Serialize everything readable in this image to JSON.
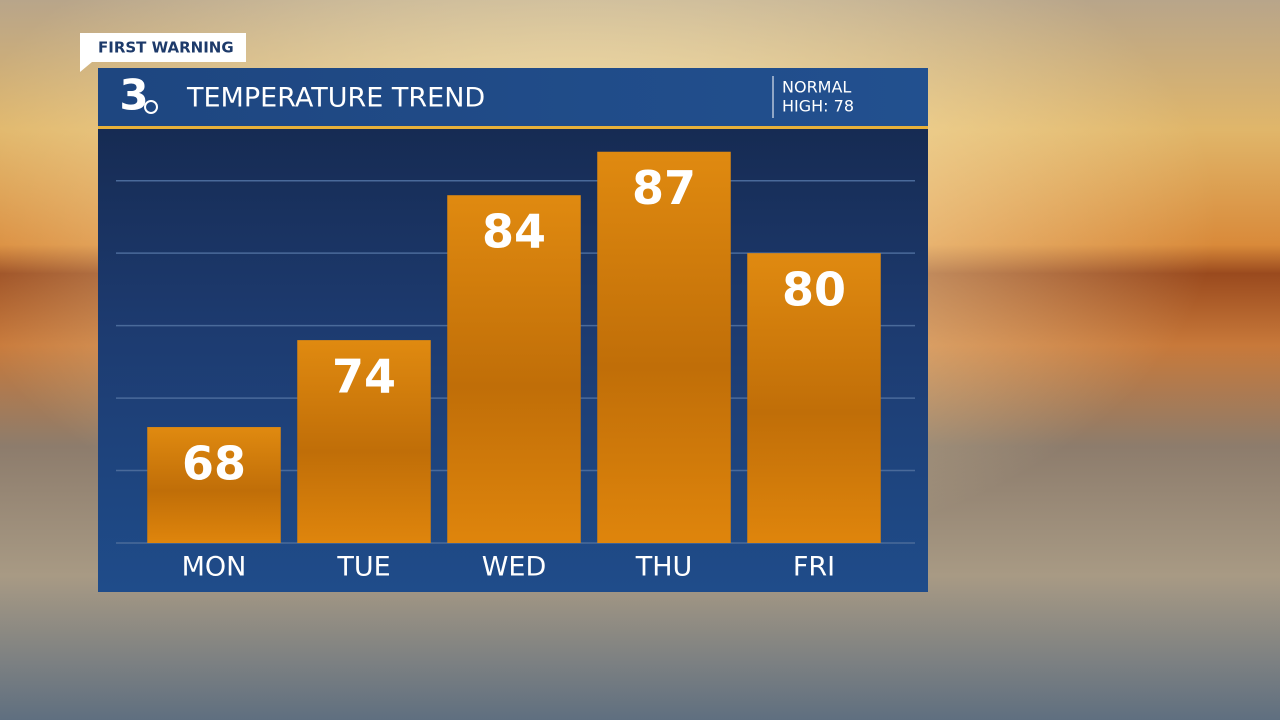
{
  "banner": "FIRST WARNING",
  "logo": "3",
  "normal_high": {
    "line1": "NORMAL",
    "line2": "HIGH: 78"
  },
  "chart_data": {
    "type": "bar",
    "title": "TEMPERATURE TREND",
    "categories": [
      "MON",
      "TUE",
      "WED",
      "THU",
      "FRI"
    ],
    "values": [
      68,
      74,
      84,
      87,
      80
    ],
    "color": "#d9800c",
    "ylim": [
      60,
      88.5
    ],
    "yticks": [
      60,
      65,
      70,
      75,
      80,
      85
    ],
    "grid": true
  }
}
